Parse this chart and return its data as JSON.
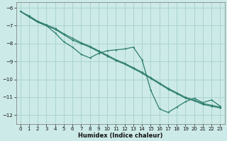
{
  "xlabel": "Humidex (Indice chaleur)",
  "background_color": "#cceae7",
  "grid_color": "#aad4d0",
  "line_color": "#2d7d6e",
  "xlim": [
    -0.5,
    23.5
  ],
  "ylim": [
    -12.5,
    -5.7
  ],
  "xticks": [
    0,
    1,
    2,
    3,
    4,
    5,
    6,
    7,
    8,
    9,
    10,
    11,
    12,
    13,
    14,
    15,
    16,
    17,
    18,
    19,
    20,
    21,
    22,
    23
  ],
  "yticks": [
    -6,
    -7,
    -8,
    -9,
    -10,
    -11,
    -12
  ],
  "line1_x": [
    0,
    1,
    2,
    3,
    4,
    5,
    6,
    7,
    8,
    9,
    10,
    11,
    12,
    13,
    14,
    15,
    16,
    17,
    18,
    19,
    20,
    21,
    22,
    23
  ],
  "line1_y": [
    -6.2,
    -6.45,
    -6.75,
    -6.95,
    -7.15,
    -7.45,
    -7.7,
    -7.95,
    -8.15,
    -8.4,
    -8.65,
    -8.9,
    -9.1,
    -9.35,
    -9.6,
    -9.9,
    -10.2,
    -10.5,
    -10.75,
    -11.0,
    -11.15,
    -11.35,
    -11.45,
    -11.55
  ],
  "line2_x": [
    0,
    1,
    2,
    3,
    4,
    5,
    6,
    7,
    8,
    9,
    10,
    11,
    12,
    13,
    14,
    15,
    16,
    17,
    18,
    19,
    20,
    21,
    22,
    23
  ],
  "line2_y": [
    -6.2,
    -6.5,
    -6.8,
    -7.0,
    -7.2,
    -7.5,
    -7.8,
    -8.0,
    -8.2,
    -8.45,
    -8.7,
    -8.95,
    -9.15,
    -9.4,
    -9.65,
    -9.95,
    -10.25,
    -10.55,
    -10.8,
    -11.05,
    -11.2,
    -11.4,
    -11.5,
    -11.6
  ],
  "line3_x": [
    0,
    1,
    2,
    3,
    4,
    5,
    6,
    7,
    8,
    9,
    10,
    11,
    12,
    13,
    14,
    15,
    16,
    17,
    18,
    19,
    20,
    21,
    22,
    23
  ],
  "line3_y": [
    -6.2,
    -6.5,
    -6.8,
    -7.0,
    -7.4,
    -7.9,
    -8.2,
    -8.6,
    -8.8,
    -8.55,
    -8.4,
    -8.35,
    -8.3,
    -8.2,
    -8.9,
    -10.6,
    -11.65,
    -11.85,
    -11.55,
    -11.25,
    -11.05,
    -11.3,
    -11.15,
    -11.5
  ]
}
